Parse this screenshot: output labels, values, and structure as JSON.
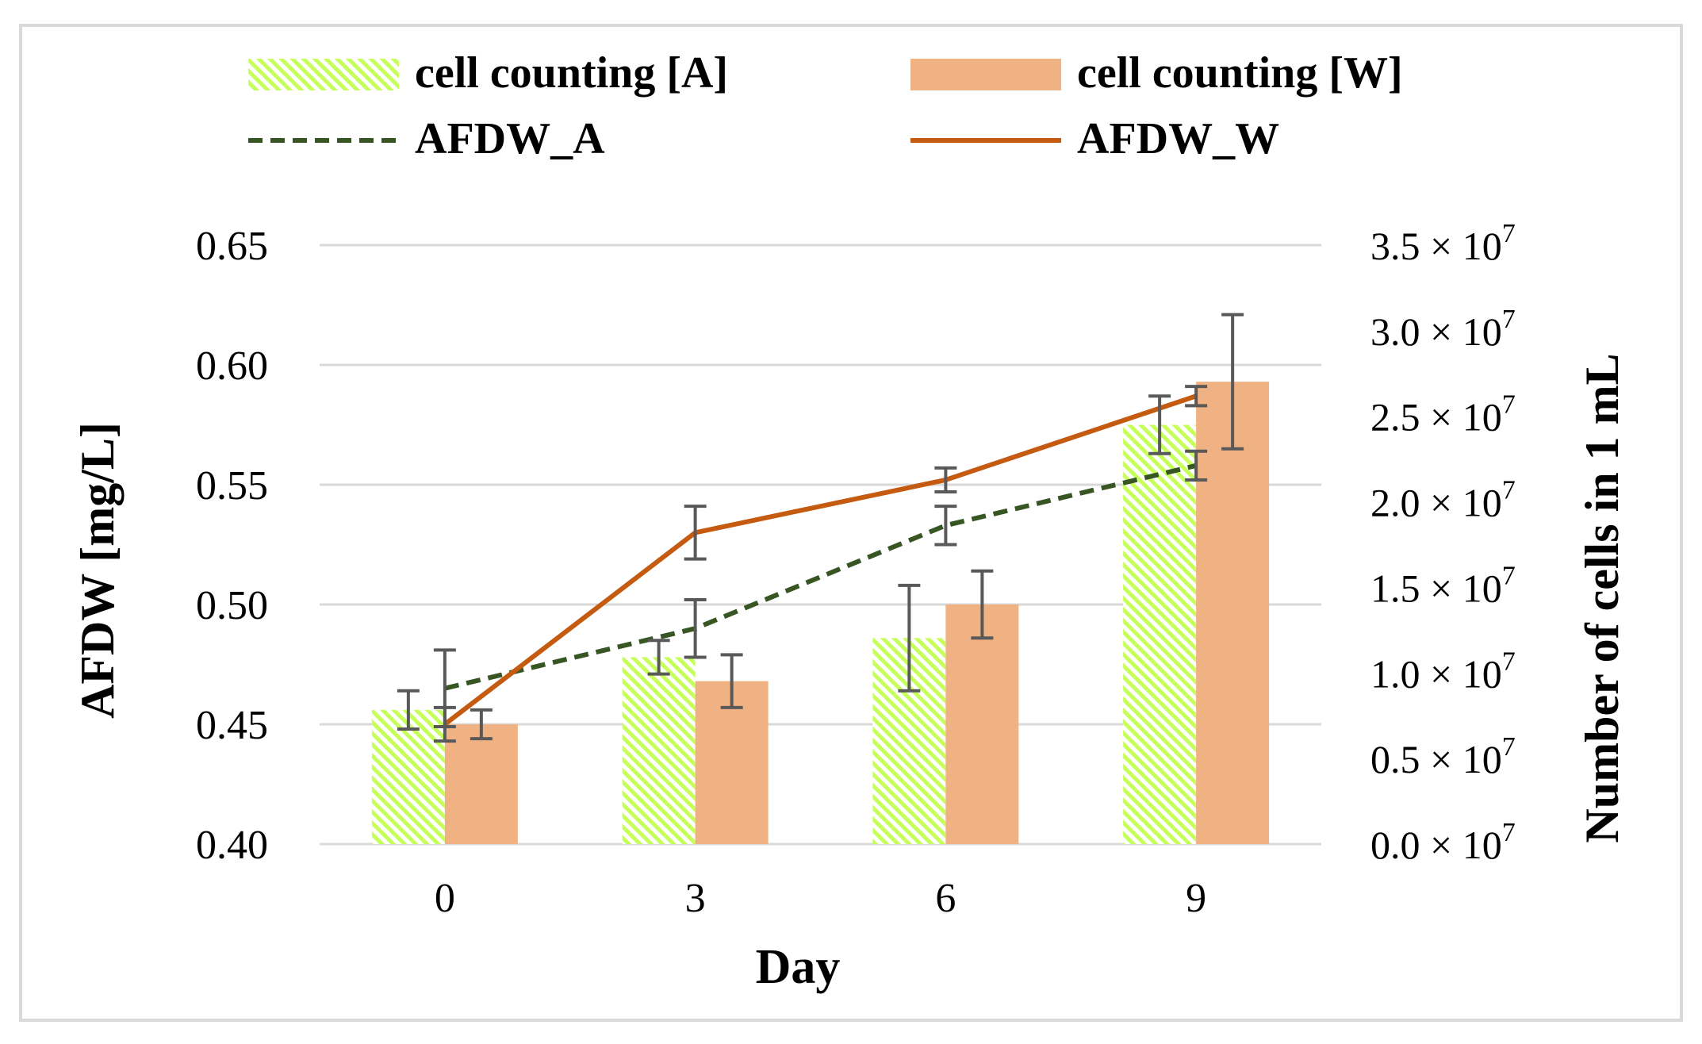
{
  "chart_data": {
    "type": "bar",
    "title": "",
    "xlabel": "Day",
    "ylabel_left": "AFDW [mg/L]",
    "ylabel_right": "Number of cells in 1 mL",
    "categories": [
      "0",
      "3",
      "6",
      "9"
    ],
    "ylim_left": [
      0.4,
      0.65
    ],
    "yticks_left": [
      "0.40",
      "0.45",
      "0.50",
      "0.55",
      "0.60",
      "0.65"
    ],
    "ylim_right": [
      0.0,
      3.5
    ],
    "yticks_right": [
      {
        "mantissa": "0.0",
        "exp": "7"
      },
      {
        "mantissa": "0.5",
        "exp": "7"
      },
      {
        "mantissa": "1.0",
        "exp": "7"
      },
      {
        "mantissa": "1.5",
        "exp": "7"
      },
      {
        "mantissa": "2.0",
        "exp": "7"
      },
      {
        "mantissa": "2.5",
        "exp": "7"
      },
      {
        "mantissa": "3.0",
        "exp": "7"
      },
      {
        "mantissa": "3.5",
        "exp": "7"
      }
    ],
    "right_axis_scale_note": "values in units of 10^7 cells/mL",
    "grid": true,
    "legend_position": "top",
    "series": [
      {
        "name": "cell counting [A]",
        "kind": "bar",
        "axis": "left",
        "color": "#c6ff5a",
        "pattern": "hatched",
        "values": [
          0.456,
          0.478,
          0.486,
          0.575
        ],
        "errors": [
          0.008,
          0.007,
          0.022,
          0.012
        ]
      },
      {
        "name": "cell counting [W]",
        "kind": "bar",
        "axis": "left",
        "color": "#f0b183",
        "pattern": "solid",
        "values": [
          0.45,
          0.468,
          0.5,
          0.593
        ],
        "errors": [
          0.006,
          0.011,
          0.014,
          0.028
        ]
      },
      {
        "name": "AFDW_A",
        "kind": "line",
        "axis": "left",
        "color": "#375623",
        "dash": "dashed",
        "values": [
          0.465,
          0.49,
          0.533,
          0.558
        ],
        "errors": [
          0.016,
          0.012,
          0.008,
          0.006
        ]
      },
      {
        "name": "AFDW_W",
        "kind": "line",
        "axis": "left",
        "color": "#c55a11",
        "dash": "solid",
        "values": [
          0.45,
          0.53,
          0.552,
          0.587
        ],
        "errors": [
          0.007,
          0.011,
          0.005,
          0.004
        ]
      }
    ]
  }
}
